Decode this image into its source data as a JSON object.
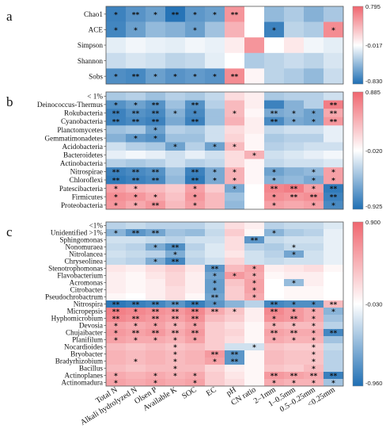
{
  "colors": {
    "low": "#1f6fb4",
    "mid": "#ffffff",
    "high": "#f0666f"
  },
  "chart_data": [
    {
      "type": "heatmap",
      "panel_label": "a",
      "rows": [
        "Chao1",
        "ACE",
        "Simpson",
        "Shannon",
        "Sobs"
      ],
      "columns": [
        "Total N",
        "Alkali hydrolyzed N",
        "Olsen P",
        "Available K",
        "SOC",
        "EC",
        "pH",
        "CN ratio",
        "2–1mm",
        "1–0.5mm",
        "0.5–0.25mm",
        "<0.25mm"
      ],
      "colorbar": {
        "max": 0.795,
        "mid": -0.017,
        "min": -0.83,
        "labels": [
          "0.795",
          "-0.017",
          "-0.830"
        ]
      },
      "values": [
        [
          -0.72,
          -0.62,
          -0.55,
          -0.8,
          -0.6,
          -0.55,
          0.55,
          0.0,
          -0.4,
          -0.3,
          -0.45,
          -0.32
        ],
        [
          -0.7,
          -0.55,
          -0.4,
          -0.45,
          -0.55,
          -0.35,
          0.4,
          0.0,
          -0.72,
          -0.25,
          -0.3,
          0.6
        ],
        [
          -0.1,
          -0.05,
          -0.08,
          -0.1,
          -0.05,
          -0.08,
          0.1,
          0.55,
          0.0,
          0.12,
          -0.05,
          -0.1
        ],
        [
          -0.2,
          -0.15,
          -0.18,
          -0.25,
          -0.22,
          -0.1,
          0.0,
          -0.3,
          -0.25,
          -0.2,
          -0.25,
          -0.15
        ],
        [
          -0.65,
          -0.68,
          -0.55,
          -0.62,
          -0.58,
          -0.62,
          0.6,
          0.05,
          -0.25,
          -0.3,
          -0.4,
          -0.2
        ]
      ],
      "stars": [
        [
          "*",
          "**",
          "*",
          "**",
          "*",
          "*",
          "**",
          "",
          "",
          "",
          "",
          ""
        ],
        [
          "*",
          "*",
          "",
          "",
          "*",
          "",
          "",
          "",
          "*",
          "",
          "",
          "*"
        ],
        [
          "",
          "",
          "",
          "",
          "",
          "",
          "",
          "",
          "",
          "",
          "",
          ""
        ],
        [
          "",
          "",
          "",
          "",
          "",
          "",
          "",
          "",
          "",
          "",
          "",
          ""
        ],
        [
          "*",
          "**",
          "*",
          "*",
          "*",
          "*",
          "**",
          "",
          "",
          "",
          "",
          ""
        ]
      ]
    },
    {
      "type": "heatmap",
      "panel_label": "b",
      "rows": [
        "< 1%",
        "Deinococcus-Thermus",
        "Rokubacteria",
        "Cyanobacteria",
        "Planctomycetes",
        "Gemmatimonadetes",
        "Acidobacteria",
        "Bacteroidetes",
        "Actinobacteria",
        "Nitrospirae",
        "Chloroflexi",
        "Patescibacteria",
        "Firmicutes",
        "Proteobacteria"
      ],
      "columns": [
        "Total N",
        "Alkali hydrolyzed N",
        "Olsen P",
        "Available K",
        "SOC",
        "EC",
        "pH",
        "CN ratio",
        "2–1mm",
        "1–0.5mm",
        "0.5–0.25mm",
        "<0.25mm"
      ],
      "colorbar": {
        "max": 0.885,
        "mid": -0.02,
        "min": -0.925,
        "labels": [
          "0.885",
          "-0.020",
          "-0.925"
        ]
      },
      "values": [
        [
          -0.35,
          -0.3,
          -0.4,
          -0.3,
          -0.35,
          -0.25,
          0.2,
          0.1,
          -0.35,
          -0.3,
          -0.3,
          -0.2
        ],
        [
          -0.7,
          -0.6,
          -0.7,
          -0.4,
          -0.7,
          -0.3,
          0.4,
          0.1,
          -0.8,
          -0.5,
          -0.3,
          0.75
        ],
        [
          -0.8,
          -0.7,
          -0.75,
          -0.5,
          -0.75,
          -0.4,
          0.4,
          0.05,
          -0.55,
          -0.5,
          -0.6,
          0.5
        ],
        [
          -0.8,
          -0.75,
          -0.8,
          -0.55,
          -0.8,
          -0.4,
          0.45,
          0.1,
          -0.75,
          -0.55,
          -0.6,
          0.6
        ],
        [
          -0.4,
          -0.35,
          -0.6,
          -0.3,
          -0.35,
          -0.2,
          0.2,
          0.1,
          -0.25,
          -0.2,
          -0.2,
          -0.1
        ],
        [
          -0.5,
          -0.65,
          -0.7,
          -0.4,
          -0.4,
          -0.2,
          0.25,
          0.05,
          -0.35,
          -0.3,
          -0.3,
          -0.1
        ],
        [
          -0.2,
          -0.3,
          -0.35,
          -0.6,
          -0.3,
          -0.6,
          0.4,
          0.05,
          -0.3,
          -0.25,
          -0.2,
          -0.2
        ],
        [
          -0.1,
          -0.05,
          -0.1,
          -0.2,
          -0.1,
          -0.2,
          0.2,
          0.45,
          -0.2,
          -0.15,
          -0.1,
          -0.05
        ],
        [
          -0.3,
          -0.35,
          -0.3,
          -0.2,
          -0.3,
          -0.25,
          0.2,
          0.05,
          -0.25,
          -0.2,
          -0.2,
          -0.15
        ],
        [
          -0.8,
          -0.75,
          -0.7,
          -0.4,
          -0.8,
          -0.55,
          0.45,
          0.05,
          -0.6,
          -0.5,
          -0.45,
          0.55
        ],
        [
          -0.85,
          -0.8,
          -0.75,
          -0.45,
          -0.85,
          -0.55,
          0.45,
          0.05,
          -0.5,
          -0.45,
          -0.55,
          0.55
        ],
        [
          0.55,
          0.45,
          0.4,
          0.3,
          0.55,
          0.3,
          -0.55,
          0.0,
          0.7,
          0.75,
          0.55,
          -0.85
        ],
        [
          0.65,
          0.6,
          0.5,
          0.35,
          0.6,
          0.4,
          -0.4,
          0.0,
          0.65,
          0.6,
          0.65,
          -0.8
        ],
        [
          0.6,
          0.5,
          0.6,
          0.4,
          0.55,
          0.4,
          -0.45,
          0.0,
          0.55,
          0.5,
          0.55,
          -0.75
        ]
      ],
      "stars": [
        [
          "",
          "",
          "",
          "",
          "",
          "",
          "",
          "",
          "",
          "",
          "",
          ""
        ],
        [
          "*",
          "*",
          "**",
          "",
          "**",
          "",
          "",
          "",
          "",
          "",
          "",
          "**"
        ],
        [
          "**",
          "**",
          "**",
          "*",
          "*",
          "",
          "*",
          "",
          "**",
          "*",
          "*",
          "**"
        ],
        [
          "**",
          "**",
          "**",
          "",
          "**",
          "",
          "",
          "",
          "**",
          "*",
          "*",
          "**"
        ],
        [
          "",
          "",
          "*",
          "",
          "",
          "",
          "",
          "",
          "",
          "",
          "",
          ""
        ],
        [
          "",
          "*",
          "*",
          "",
          "",
          "",
          "",
          "",
          "",
          "",
          "",
          ""
        ],
        [
          "",
          "",
          "",
          "*",
          "",
          "*",
          "*",
          "",
          "",
          "",
          "",
          ""
        ],
        [
          "",
          "",
          "",
          "",
          "",
          "",
          "",
          "*",
          "",
          "",
          "",
          ""
        ],
        [
          "",
          "",
          "",
          "",
          "",
          "",
          "",
          "",
          "",
          "",
          "",
          ""
        ],
        [
          "**",
          "**",
          "**",
          "",
          "**",
          "*",
          "*",
          "",
          "*",
          "",
          "*",
          "*"
        ],
        [
          "**",
          "**",
          "**",
          "",
          "**",
          "*",
          "*",
          "",
          "*",
          "",
          "*",
          "*"
        ],
        [
          "*",
          "*",
          "",
          "",
          "*",
          "",
          "*",
          "",
          "**",
          "**",
          "*",
          "**"
        ],
        [
          "*",
          "*",
          "*",
          "",
          "*",
          "",
          "",
          "",
          "*",
          "**",
          "**",
          "**"
        ],
        [
          "*",
          "*",
          "**",
          "",
          "*",
          "",
          "",
          "",
          "*",
          "",
          "*",
          "*"
        ]
      ]
    },
    {
      "type": "heatmap",
      "panel_label": "c",
      "rows": [
        "<1%",
        "Unidentified >1%",
        "Sphingomonas",
        "Nonomuraea",
        "Nitrolancea",
        "Chryseolinea",
        "Stenotrophomonas",
        "Flavobacterium",
        "Acromonas",
        "Citrobacter",
        "Pseudochrobactrum",
        "Nitrospira",
        "Micropepsis",
        "Hyphomicrobium",
        "Devosia",
        "Chujaibacter",
        "Planifilum",
        "Nocardioides",
        "Bryobacter",
        "Bradyrhizobium",
        "Bacillus",
        "Actinoplanes",
        "Actinomadura"
      ],
      "columns": [
        "Total N",
        "Alkali hydrolyzed N",
        "Olsen P",
        "Available K",
        "SOC",
        "EC",
        "pH",
        "CN ratio",
        "2–1mm",
        "1–0.5mm",
        "0.5–0.25mm",
        "<0.25mm"
      ],
      "colorbar": {
        "max": 0.9,
        "mid": -0.03,
        "min": -0.96,
        "labels": [
          "0.900",
          "-0.030",
          "-0.960"
        ]
      },
      "values": [
        [
          -0.3,
          -0.25,
          -0.3,
          -0.3,
          -0.3,
          -0.2,
          0.2,
          0.1,
          -0.3,
          -0.25,
          -0.25,
          -0.15
        ],
        [
          -0.5,
          -0.7,
          -0.6,
          -0.4,
          -0.45,
          -0.25,
          0.3,
          0.05,
          -0.5,
          -0.35,
          -0.3,
          -0.1
        ],
        [
          -0.2,
          -0.2,
          -0.25,
          -0.3,
          -0.2,
          -0.2,
          0.2,
          -0.7,
          -0.25,
          -0.2,
          -0.2,
          -0.1
        ],
        [
          -0.25,
          -0.3,
          -0.55,
          -0.75,
          -0.3,
          -0.15,
          0.2,
          -0.3,
          -0.35,
          -0.25,
          -0.25,
          -0.1
        ],
        [
          -0.2,
          -0.25,
          -0.3,
          -0.55,
          -0.25,
          -0.15,
          0.15,
          -0.2,
          -0.3,
          -0.6,
          -0.2,
          -0.1
        ],
        [
          -0.25,
          -0.3,
          -0.55,
          -0.8,
          -0.3,
          -0.2,
          0.25,
          -0.2,
          -0.25,
          -0.2,
          -0.2,
          -0.1
        ],
        [
          0.15,
          0.1,
          0.2,
          0.3,
          0.15,
          -0.7,
          0.4,
          0.55,
          0.1,
          0.15,
          0.2,
          0.05
        ],
        [
          0.1,
          0.05,
          0.15,
          0.25,
          0.1,
          -0.6,
          0.6,
          0.5,
          0.05,
          0.1,
          0.1,
          0.0
        ],
        [
          0.1,
          0.05,
          0.1,
          0.25,
          0.1,
          -0.65,
          0.35,
          0.55,
          0.0,
          -0.45,
          0.1,
          0.0
        ],
        [
          0.1,
          0.05,
          0.1,
          0.2,
          0.1,
          -0.65,
          0.3,
          0.55,
          0.0,
          0.05,
          0.05,
          0.0
        ],
        [
          0.05,
          0.0,
          0.1,
          0.2,
          0.05,
          -0.6,
          0.3,
          0.5,
          0.0,
          0.05,
          0.05,
          0.0
        ],
        [
          -0.9,
          -0.85,
          -0.8,
          -0.7,
          -0.85,
          -0.7,
          -0.5,
          -0.3,
          -0.8,
          -0.75,
          -0.75,
          0.4
        ],
        [
          0.75,
          0.7,
          0.65,
          0.6,
          0.7,
          0.5,
          0.35,
          0.1,
          0.7,
          0.6,
          0.5,
          -0.5
        ],
        [
          0.7,
          0.65,
          0.6,
          0.55,
          0.65,
          0.4,
          0.3,
          0.1,
          0.65,
          0.6,
          0.5,
          -0.4
        ],
        [
          0.55,
          0.5,
          0.55,
          0.45,
          0.55,
          0.3,
          0.2,
          0.05,
          0.45,
          0.4,
          0.4,
          -0.3
        ],
        [
          0.6,
          0.55,
          0.6,
          0.5,
          0.6,
          0.3,
          0.25,
          0.05,
          0.55,
          0.5,
          0.5,
          -0.8
        ],
        [
          0.55,
          0.5,
          0.5,
          0.45,
          0.55,
          0.3,
          0.2,
          0.05,
          0.5,
          0.45,
          0.45,
          -0.4
        ],
        [
          0.4,
          0.35,
          0.4,
          0.35,
          0.4,
          0.3,
          -0.2,
          -0.2,
          0.35,
          0.3,
          0.3,
          -0.25
        ],
        [
          0.45,
          0.4,
          0.45,
          0.4,
          0.45,
          0.6,
          -0.7,
          0.05,
          0.4,
          0.35,
          0.35,
          -0.3
        ],
        [
          0.45,
          0.4,
          0.45,
          0.4,
          0.45,
          0.55,
          -0.7,
          0.05,
          0.4,
          0.35,
          0.35,
          -0.3
        ],
        [
          0.4,
          0.35,
          0.4,
          0.4,
          0.4,
          0.25,
          0.1,
          0.05,
          0.35,
          0.3,
          0.4,
          -0.3
        ],
        [
          0.5,
          0.45,
          0.5,
          0.45,
          0.5,
          0.3,
          0.15,
          0.05,
          0.6,
          0.55,
          0.5,
          -0.85
        ],
        [
          0.55,
          0.5,
          0.55,
          0.5,
          0.55,
          0.3,
          0.2,
          0.05,
          0.5,
          0.45,
          0.45,
          -0.4
        ]
      ],
      "stars": [
        [
          "",
          "",
          "",
          "",
          "",
          "",
          "",
          "",
          "",
          "",
          "",
          ""
        ],
        [
          "*",
          "**",
          "**",
          "",
          "",
          "",
          "",
          "",
          "*",
          "",
          "",
          ""
        ],
        [
          "",
          "",
          "",
          "",
          "",
          "",
          "",
          "**",
          "",
          "",
          "",
          ""
        ],
        [
          "",
          "",
          "*",
          "**",
          "",
          "",
          "",
          "",
          "",
          "*",
          "",
          ""
        ],
        [
          "",
          "",
          "",
          "*",
          "",
          "",
          "",
          "",
          "",
          "*",
          "",
          ""
        ],
        [
          "",
          "",
          "*",
          "**",
          "",
          "",
          "",
          "",
          "",
          "",
          "",
          ""
        ],
        [
          "",
          "",
          "",
          "",
          "",
          "**",
          "",
          "*",
          "",
          "",
          "",
          ""
        ],
        [
          "",
          "",
          "",
          "",
          "",
          "*",
          "*",
          "*",
          "",
          "",
          "",
          ""
        ],
        [
          "",
          "",
          "",
          "",
          "",
          "*",
          "",
          "*",
          "",
          "*",
          "",
          ""
        ],
        [
          "",
          "",
          "",
          "",
          "",
          "*",
          "",
          "*",
          "",
          "",
          "",
          ""
        ],
        [
          "",
          "",
          "",
          "",
          "",
          "**",
          "",
          "*",
          "",
          "",
          "",
          ""
        ],
        [
          "**",
          "**",
          "**",
          "**",
          "**",
          "*",
          "",
          "",
          "**",
          "*",
          "*",
          "**"
        ],
        [
          "**",
          "*",
          "**",
          "**",
          "**",
          "**",
          "*",
          "",
          "**",
          "*",
          "*",
          "*"
        ],
        [
          "**",
          "**",
          "**",
          "**",
          "**",
          "",
          "",
          "",
          "*",
          "**",
          "*",
          ""
        ],
        [
          "*",
          "*",
          "*",
          "*",
          "*",
          "",
          "",
          "",
          "*",
          "*",
          "*",
          ""
        ],
        [
          "*",
          "**",
          "**",
          "**",
          "**",
          "",
          "",
          "",
          "**",
          "**",
          "*",
          "**"
        ],
        [
          "*",
          "*",
          "*",
          "*",
          "*",
          "",
          "",
          "",
          "*",
          "*",
          "*",
          ""
        ],
        [
          "",
          "",
          "",
          "*",
          "",
          "",
          "",
          "*",
          "",
          "",
          "*",
          ""
        ],
        [
          "",
          "",
          "",
          "*",
          "",
          "**",
          "**",
          "",
          "",
          "",
          "*",
          ""
        ],
        [
          "",
          "*",
          "",
          "*",
          "",
          "*",
          "**",
          "",
          "",
          "",
          "*",
          ""
        ],
        [
          "",
          "",
          "",
          "*",
          "",
          "",
          "",
          "",
          "",
          "",
          "*",
          ""
        ],
        [
          "*",
          "",
          "*",
          "*",
          "*",
          "",
          "",
          "",
          "**",
          "**",
          "**",
          "**"
        ],
        [
          "*",
          "",
          "*",
          "",
          "*",
          "",
          "",
          "",
          "*",
          "*",
          "*",
          "*"
        ]
      ]
    }
  ]
}
